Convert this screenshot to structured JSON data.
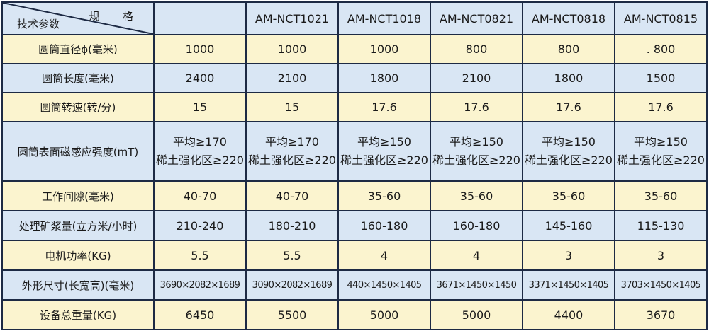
{
  "header": {
    "spec_label": "规 格",
    "param_label": "技术参数",
    "models": [
      "",
      "AM-NCT1021",
      "AM-NCT1018",
      "AM-NCT0821",
      "AM-NCT0818",
      "AM-NCT0815"
    ]
  },
  "rows": [
    {
      "label": "圆筒直径ϕ(毫米)",
      "values": [
        "1000",
        "1000",
        "1000",
        "800",
        "800",
        ". 800"
      ]
    },
    {
      "label": "圆筒长度(毫米)",
      "values": [
        "2400",
        "2100",
        "1800",
        "2100",
        "1800",
        "1500"
      ]
    },
    {
      "label": "圆筒转速(转/分)",
      "values": [
        "15",
        "15",
        "17.6",
        "17.6",
        "17.6",
        "17.6"
      ]
    },
    {
      "label": "圆筒表面磁感应强度(mT)",
      "values": [
        [
          "平均≥170",
          "稀土强化区≥220"
        ],
        [
          "平均≥170",
          "稀土强化区≥220"
        ],
        [
          "平均≥150",
          "稀土强化区≥220"
        ],
        [
          "平均≥150",
          "稀土强化区≥220"
        ],
        [
          "平均≥150",
          "稀土强化区≥220"
        ],
        [
          "平均≥150",
          "稀土强化区≥220"
        ]
      ]
    },
    {
      "label": "工作间隙(毫米)",
      "values": [
        "40-70",
        "40-70",
        "35-60",
        "35-60",
        "35-60",
        "35-60"
      ]
    },
    {
      "label": "处理矿浆量(立方米/小时)",
      "values": [
        "210-240",
        "180-210",
        "160-180",
        "160-180",
        "145-160",
        "115-130"
      ]
    },
    {
      "label": "电机功率(KG)",
      "values": [
        "5.5",
        "5.5",
        "4",
        "4",
        "3",
        "3"
      ]
    },
    {
      "label": "外形尺寸(长宽高)(毫米)",
      "values": [
        "3690×2082×1689",
        "3090×2082×1689",
        "440×1450×1405",
        "3671×1450×1450",
        "3371×1450×1405",
        "3703×1450×1405"
      ]
    },
    {
      "label": "设备总重量(KG)",
      "values": [
        "6450",
        "5500",
        "5000",
        "5000",
        "4400",
        "3670"
      ]
    }
  ]
}
